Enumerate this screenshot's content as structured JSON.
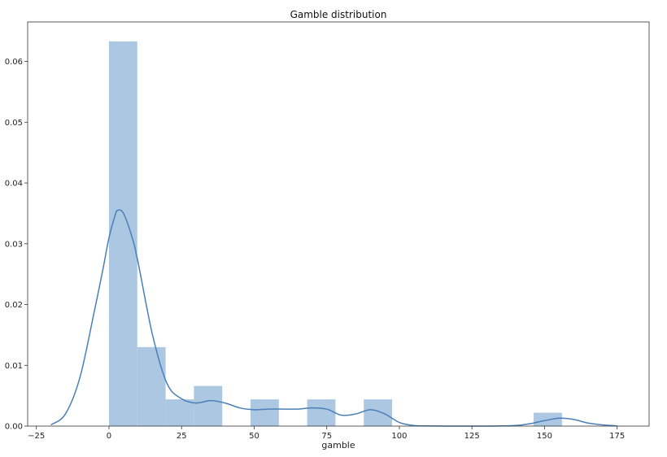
{
  "chart_data": {
    "type": "bar",
    "title": "Gamble distribution",
    "xlabel": "gamble",
    "ylabel": "",
    "xlim": [
      -28,
      186
    ],
    "ylim": [
      0,
      0.0665
    ],
    "x_ticks": [
      -25,
      0,
      25,
      50,
      75,
      100,
      125,
      150,
      175
    ],
    "x_tick_labels": [
      "−25",
      "0",
      "25",
      "50",
      "75",
      "100",
      "125",
      "150",
      "175"
    ],
    "y_ticks": [
      0,
      0.01,
      0.02,
      0.03,
      0.04,
      0.05,
      0.06
    ],
    "y_tick_labels": [
      "0.00",
      "0.01",
      "0.02",
      "0.03",
      "0.04",
      "0.05",
      "0.06"
    ],
    "grid": false,
    "series": [
      {
        "type": "histogram",
        "color": "#a8c4e0",
        "bins": [
          {
            "x0": 0,
            "x1": 9.75,
            "value": 0.0633
          },
          {
            "x0": 9.75,
            "x1": 19.5,
            "value": 0.013
          },
          {
            "x0": 19.5,
            "x1": 29.25,
            "value": 0.0044
          },
          {
            "x0": 29.25,
            "x1": 39,
            "value": 0.0066
          },
          {
            "x0": 39,
            "x1": 48.75,
            "value": 0
          },
          {
            "x0": 48.75,
            "x1": 58.5,
            "value": 0.0044
          },
          {
            "x0": 58.5,
            "x1": 68.25,
            "value": 0
          },
          {
            "x0": 68.25,
            "x1": 78,
            "value": 0.0044
          },
          {
            "x0": 78,
            "x1": 87.75,
            "value": 0
          },
          {
            "x0": 87.75,
            "x1": 97.5,
            "value": 0.0044
          },
          {
            "x0": 97.5,
            "x1": 107.25,
            "value": 0
          },
          {
            "x0": 107.25,
            "x1": 117,
            "value": 0
          },
          {
            "x0": 117,
            "x1": 126.75,
            "value": 0
          },
          {
            "x0": 126.75,
            "x1": 136.5,
            "value": 0
          },
          {
            "x0": 136.5,
            "x1": 146.25,
            "value": 0
          },
          {
            "x0": 146.25,
            "x1": 156,
            "value": 0.0022
          }
        ]
      },
      {
        "type": "line",
        "color": "#4a7fb8",
        "x": [
          -20,
          -15,
          -10,
          -5,
          -2,
          0,
          2,
          3,
          5,
          8,
          10,
          15,
          20,
          25,
          30,
          35,
          40,
          45,
          50,
          55,
          60,
          65,
          70,
          75,
          80,
          85,
          90,
          95,
          100,
          105,
          110,
          120,
          130,
          140,
          145,
          150,
          155,
          160,
          165,
          170,
          175
        ],
        "y": [
          0.0002,
          0.002,
          0.008,
          0.019,
          0.026,
          0.031,
          0.0345,
          0.0355,
          0.035,
          0.031,
          0.027,
          0.015,
          0.007,
          0.0045,
          0.0038,
          0.0042,
          0.0038,
          0.003,
          0.0027,
          0.0028,
          0.0028,
          0.0028,
          0.003,
          0.0028,
          0.0018,
          0.002,
          0.0027,
          0.002,
          0.0006,
          0.0001,
          3e-05,
          0,
          0,
          0.0001,
          0.0004,
          0.0009,
          0.0013,
          0.0011,
          0.0005,
          0.0002,
          3e-05
        ]
      }
    ]
  }
}
